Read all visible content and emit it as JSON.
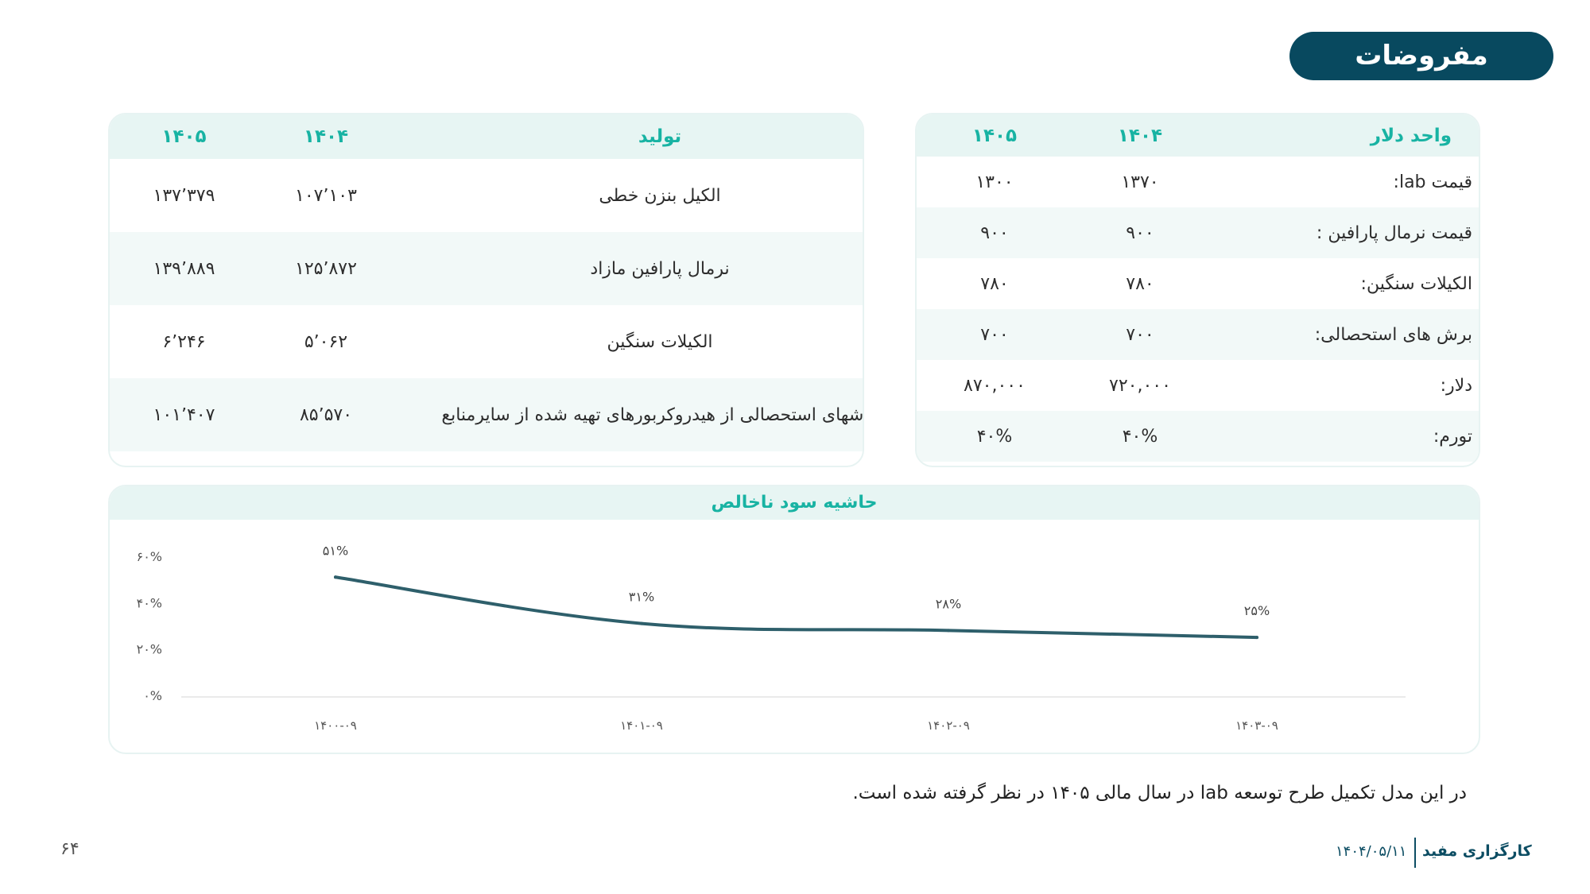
{
  "header": {
    "title": "مفروضات"
  },
  "production_table": {
    "headers": [
      "تولید",
      "۱۴۰۴",
      "۱۴۰۵"
    ],
    "rows": [
      {
        "name": "الکیل بنزن خطی",
        "y1404": "۱۰۷٬۱۰۳",
        "y1405": "۱۳۷٬۳۷۹"
      },
      {
        "name": "نرمال پارافین مازاد",
        "y1404": "۱۲۵٬۸۷۲",
        "y1405": "۱۳۹٬۸۸۹"
      },
      {
        "name": "الکیلات سنگین",
        "y1404": "۵٬۰۶۲",
        "y1405": "۶٬۲۴۶"
      },
      {
        "name": "برشهای استحصالی از هیدروکربورهای تهیه شده از سایرمنابع",
        "y1404": "۸۵٬۵۷۰",
        "y1405": "۱۰۱٬۴۰۷"
      }
    ]
  },
  "dollar_table": {
    "headers": [
      "واحد دلار",
      "۱۴۰۴",
      "۱۴۰۵"
    ],
    "rows": [
      {
        "name": "قیمت lab:",
        "y1404": "۱۳۷۰",
        "y1405": "۱۳۰۰"
      },
      {
        "name": "قیمت نرمال پارافین  :",
        "y1404": "۹۰۰",
        "y1405": "۹۰۰"
      },
      {
        "name": "الکیلات سنگین:",
        "y1404": "۷۸۰",
        "y1405": "۷۸۰"
      },
      {
        "name": "برش های استحصالی:",
        "y1404": "۷۰۰",
        "y1405": "۷۰۰"
      },
      {
        "name": "دلار:",
        "y1404": "۷۲۰,۰۰۰",
        "y1405": "۸۷۰,۰۰۰"
      },
      {
        "name": "تورم:",
        "y1404": "۴۰%",
        "y1405": "۴۰%"
      }
    ]
  },
  "chart_data": {
    "type": "line",
    "title": "حاشیه سود ناخالص",
    "x": [
      "۱۴۰۰-۰۹",
      "۱۴۰۱-۰۹",
      "۱۴۰۲-۰۹",
      "۱۴۰۳-۰۹"
    ],
    "values": [
      51,
      31,
      28,
      25
    ],
    "point_labels": [
      "۵۱%",
      "۳۱%",
      "۲۸%",
      "۲۵%"
    ],
    "yticks": [
      "۰%",
      "۲۰%",
      "۴۰%",
      "۶۰%"
    ],
    "ylim": [
      0,
      60
    ],
    "grid": false,
    "line_color": "#2e5f6b"
  },
  "footer": {
    "note": "در این مدل تکمیل طرح توسعه lab در سال مالی ۱۴۰۵ در نظر گرفته شده است.",
    "brand": "کارگزاری مفید",
    "date": "۱۴۰۴/۰۵/۱۱",
    "page_number": "۶۴"
  }
}
